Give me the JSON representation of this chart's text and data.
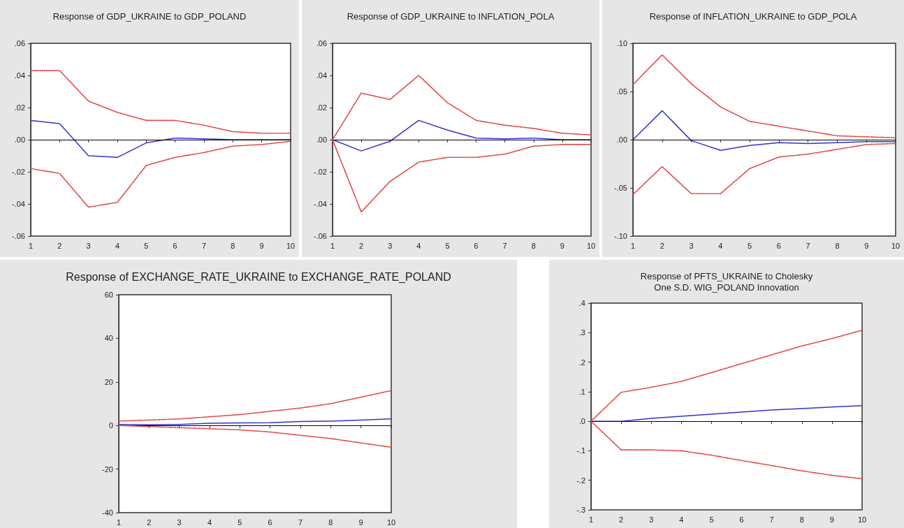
{
  "chart_data": [
    {
      "type": "line",
      "title": "Response of GDP_UKRAINE to GDP_POLAND",
      "x": [
        1,
        2,
        3,
        4,
        5,
        6,
        7,
        8,
        9,
        10
      ],
      "xlim": [
        1,
        10
      ],
      "xticks": [
        1,
        2,
        3,
        4,
        5,
        6,
        7,
        8,
        9,
        10
      ],
      "ylim": [
        -0.06,
        0.06
      ],
      "yticks": [
        {
          "value": -0.06,
          "label": "-.06"
        },
        {
          "value": -0.04,
          "label": "-.04"
        },
        {
          "value": -0.02,
          "label": "-.02"
        },
        {
          "value": 0,
          "label": ".00"
        },
        {
          "value": 0.02,
          "label": ".02"
        },
        {
          "value": 0.04,
          "label": ".04"
        },
        {
          "value": 0.06,
          "label": ".06"
        }
      ],
      "grid": false,
      "marker": "none",
      "ref_lines": [
        {
          "axis": "y",
          "value": 0,
          "color": "#000000"
        }
      ],
      "series": [
        {
          "color": "#3333cc",
          "line_style": "solid",
          "values": [
            0.012,
            0.01,
            -0.01,
            -0.011,
            -0.002,
            0.001,
            0.0005,
            0,
            0,
            0
          ]
        },
        {
          "color": "#e03c3c",
          "line_style": "dotted",
          "values": [
            0.043,
            0.043,
            0.024,
            0.017,
            0.012,
            0.012,
            0.009,
            0.005,
            0.004,
            0.004
          ]
        },
        {
          "color": "#e03c3c",
          "line_style": "dotted",
          "values": [
            -0.018,
            -0.021,
            -0.042,
            -0.039,
            -0.016,
            -0.011,
            -0.008,
            -0.004,
            -0.003,
            -0.001
          ]
        }
      ]
    },
    {
      "type": "line",
      "title": "Response of GDP_UKRAINE to INFLATION_POLA",
      "x": [
        1,
        2,
        3,
        4,
        5,
        6,
        7,
        8,
        9,
        10
      ],
      "xlim": [
        1,
        10
      ],
      "xticks": [
        1,
        2,
        3,
        4,
        5,
        6,
        7,
        8,
        9,
        10
      ],
      "ylim": [
        -0.06,
        0.06
      ],
      "yticks": [
        {
          "value": -0.06,
          "label": "-.06"
        },
        {
          "value": -0.04,
          "label": "-.04"
        },
        {
          "value": -0.02,
          "label": "-.02"
        },
        {
          "value": 0,
          "label": ".00"
        },
        {
          "value": 0.02,
          "label": ".02"
        },
        {
          "value": 0.04,
          "label": ".04"
        },
        {
          "value": 0.06,
          "label": ".06"
        }
      ],
      "grid": false,
      "marker": "none",
      "ref_lines": [
        {
          "axis": "y",
          "value": 0,
          "color": "#000000"
        }
      ],
      "series": [
        {
          "color": "#3333cc",
          "line_style": "solid",
          "values": [
            0,
            -0.007,
            -0.001,
            0.012,
            0.006,
            0.001,
            0.0005,
            0.001,
            0,
            0
          ]
        },
        {
          "color": "#e03c3c",
          "line_style": "dotted",
          "values": [
            0,
            0.029,
            0.025,
            0.04,
            0.023,
            0.012,
            0.009,
            0.007,
            0.004,
            0.003
          ]
        },
        {
          "color": "#e03c3c",
          "line_style": "dotted",
          "values": [
            0,
            -0.045,
            -0.026,
            -0.014,
            -0.011,
            -0.011,
            -0.009,
            -0.004,
            -0.003,
            -0.003
          ]
        }
      ]
    },
    {
      "type": "line",
      "title": "Response of INFLATION_UKRAINE to GDP_POLA",
      "x": [
        1,
        2,
        3,
        4,
        5,
        6,
        7,
        8,
        9,
        10
      ],
      "xlim": [
        1,
        10
      ],
      "xticks": [
        1,
        2,
        3,
        4,
        5,
        6,
        7,
        8,
        9,
        10
      ],
      "ylim": [
        -0.1,
        0.1
      ],
      "yticks": [
        {
          "value": -0.1,
          "label": "-.10"
        },
        {
          "value": -0.05,
          "label": "-.05"
        },
        {
          "value": 0,
          "label": ".00"
        },
        {
          "value": 0.05,
          "label": ".05"
        },
        {
          "value": 0.1,
          "label": ".10"
        }
      ],
      "grid": false,
      "marker": "none",
      "ref_lines": [
        {
          "axis": "y",
          "value": 0,
          "color": "#000000"
        }
      ],
      "series": [
        {
          "color": "#3333cc",
          "line_style": "solid",
          "values": [
            0,
            0.03,
            -0.001,
            -0.011,
            -0.006,
            -0.003,
            -0.004,
            -0.003,
            -0.002,
            -0.002
          ]
        },
        {
          "color": "#e03c3c",
          "line_style": "dotted",
          "values": [
            0.057,
            0.088,
            0.058,
            0.034,
            0.019,
            0.014,
            0.009,
            0.004,
            0.003,
            0.002
          ]
        },
        {
          "color": "#e03c3c",
          "line_style": "dotted",
          "values": [
            -0.057,
            -0.028,
            -0.056,
            -0.056,
            -0.03,
            -0.018,
            -0.015,
            -0.01,
            -0.005,
            -0.004
          ]
        }
      ]
    },
    {
      "type": "line",
      "title": "Response of EXCHANGE_RATE_UKRAINE to EXCHANGE_RATE_POLAND",
      "x": [
        1,
        2,
        3,
        4,
        5,
        6,
        7,
        8,
        9,
        10
      ],
      "xlim": [
        1,
        10
      ],
      "xticks": [
        1,
        2,
        3,
        4,
        5,
        6,
        7,
        8,
        9,
        10
      ],
      "ylim": [
        -40,
        60
      ],
      "yticks": [
        -40,
        -20,
        0,
        20,
        40,
        60
      ],
      "grid": false,
      "marker": "none",
      "ref_lines": [
        {
          "axis": "y",
          "value": 0,
          "color": "#000000"
        }
      ],
      "series": [
        {
          "color": "#3333cc",
          "line_style": "solid",
          "values": [
            0.5,
            0.3,
            0.5,
            1,
            1.2,
            1.3,
            1.8,
            2,
            2.5,
            3
          ]
        },
        {
          "color": "#e03c3c",
          "line_style": "dotted",
          "values": [
            2,
            2.5,
            3,
            4,
            5,
            6.5,
            8,
            10,
            13,
            16
          ]
        },
        {
          "color": "#e03c3c",
          "line_style": "dotted",
          "values": [
            0,
            -0.5,
            -1,
            -1.5,
            -2,
            -3,
            -4.5,
            -6,
            -8,
            -10
          ]
        }
      ]
    },
    {
      "type": "line",
      "title": "Response of PFTS_UKRAINE to Cholesky\nOne S.D. WIG_POLAND Innovation",
      "x": [
        1,
        2,
        3,
        4,
        5,
        6,
        7,
        8,
        9,
        10
      ],
      "xlim": [
        1,
        10
      ],
      "xticks": [
        1,
        2,
        3,
        4,
        5,
        6,
        7,
        8,
        9,
        10
      ],
      "ylim": [
        -0.3,
        0.4
      ],
      "yticks": [
        {
          "value": -0.3,
          "label": "-.3"
        },
        {
          "value": -0.2,
          "label": "-.2"
        },
        {
          "value": -0.1,
          "label": "-.1"
        },
        {
          "value": 0,
          "label": ".0"
        },
        {
          "value": 0.1,
          "label": ".1"
        },
        {
          "value": 0.2,
          "label": ".2"
        },
        {
          "value": 0.3,
          "label": ".3"
        },
        {
          "value": 0.4,
          "label": ".4"
        }
      ],
      "grid": false,
      "marker": "none",
      "ref_lines": [
        {
          "axis": "y",
          "value": 0,
          "color": "#000000"
        }
      ],
      "series": [
        {
          "color": "#3333cc",
          "line_style": "solid",
          "values": [
            0,
            0,
            0.01,
            0.017,
            0.024,
            0.031,
            0.038,
            0.043,
            0.048,
            0.053
          ]
        },
        {
          "color": "#e03c3c",
          "line_style": "dotted",
          "values": [
            0,
            0.098,
            0.115,
            0.135,
            0.165,
            0.195,
            0.225,
            0.255,
            0.28,
            0.308
          ]
        },
        {
          "color": "#e03c3c",
          "line_style": "dotted",
          "values": [
            0,
            -0.097,
            -0.097,
            -0.1,
            -0.115,
            -0.133,
            -0.15,
            -0.168,
            -0.183,
            -0.195
          ]
        }
      ]
    }
  ]
}
